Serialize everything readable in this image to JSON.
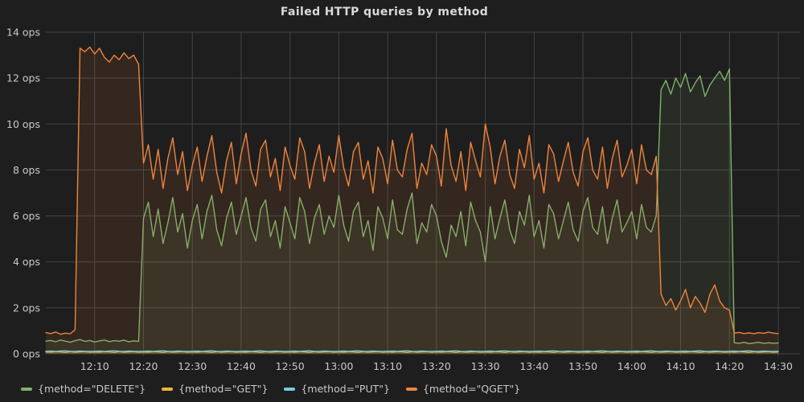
{
  "panel": {
    "title": "Failed HTTP queries by method",
    "bg_color": "#1f1e1e",
    "title_color": "#d8d9da",
    "tick_text_color": "#c7c8c9"
  },
  "chart_data": {
    "type": "line",
    "title": "Failed HTTP queries by method",
    "grid": true,
    "grid_color": "#444444",
    "legend_position": "bottom",
    "fill_opacity": 0.1,
    "x_unit": "time",
    "x_start_label": "12:00",
    "x_min": 0,
    "x_max": 150,
    "x_step_min": 1,
    "x_axis": {
      "ticks": [
        {
          "label": "12:10",
          "minute": 10
        },
        {
          "label": "12:20",
          "minute": 20
        },
        {
          "label": "12:30",
          "minute": 30
        },
        {
          "label": "12:40",
          "minute": 40
        },
        {
          "label": "12:50",
          "minute": 50
        },
        {
          "label": "13:00",
          "minute": 60
        },
        {
          "label": "13:10",
          "minute": 70
        },
        {
          "label": "13:20",
          "minute": 80
        },
        {
          "label": "13:30",
          "minute": 90
        },
        {
          "label": "13:40",
          "minute": 100
        },
        {
          "label": "13:50",
          "minute": 110
        },
        {
          "label": "14:00",
          "minute": 120
        },
        {
          "label": "14:10",
          "minute": 130
        },
        {
          "label": "14:20",
          "minute": 140
        },
        {
          "label": "14:30",
          "minute": 150
        }
      ]
    },
    "y_axis": {
      "min": 0,
      "max": 14,
      "ticks": [
        {
          "label": "0 ops",
          "value": 0
        },
        {
          "label": "2 ops",
          "value": 2
        },
        {
          "label": "4 ops",
          "value": 4
        },
        {
          "label": "6 ops",
          "value": 6
        },
        {
          "label": "8 ops",
          "value": 8
        },
        {
          "label": "10 ops",
          "value": 10
        },
        {
          "label": "12 ops",
          "value": 12
        },
        {
          "label": "14 ops",
          "value": 14
        }
      ]
    },
    "series": [
      {
        "id": "delete",
        "name": "{method=\"DELETE\"}",
        "color": "#7EB26D",
        "values": [
          0.55,
          0.58,
          0.52,
          0.6,
          0.55,
          0.5,
          0.57,
          0.62,
          0.54,
          0.58,
          0.51,
          0.56,
          0.6,
          0.53,
          0.57,
          0.55,
          0.59,
          0.52,
          0.56,
          0.54,
          5.9,
          6.6,
          5.1,
          6.3,
          4.8,
          5.7,
          6.8,
          5.3,
          6.1,
          4.6,
          5.8,
          6.5,
          5.0,
          6.2,
          6.9,
          5.4,
          4.7,
          5.9,
          6.6,
          5.2,
          6.0,
          6.8,
          5.5,
          4.9,
          6.3,
          6.7,
          5.1,
          5.8,
          4.6,
          6.4,
          5.7,
          5.0,
          6.8,
          6.2,
          4.8,
          5.9,
          6.5,
          5.2,
          6.0,
          5.5,
          6.9,
          5.6,
          4.9,
          6.2,
          6.6,
          5.1,
          5.8,
          4.5,
          6.4,
          5.9,
          5.0,
          6.7,
          5.4,
          5.2,
          6.3,
          7.0,
          4.8,
          5.7,
          5.3,
          6.5,
          6.0,
          4.9,
          4.2,
          5.6,
          5.1,
          6.2,
          4.7,
          6.6,
          5.8,
          5.3,
          4.0,
          6.4,
          5.0,
          5.9,
          6.7,
          5.4,
          4.8,
          6.2,
          5.6,
          6.9,
          5.1,
          5.8,
          4.6,
          6.5,
          6.1,
          5.0,
          5.8,
          6.6,
          5.4,
          4.9,
          6.2,
          6.8,
          5.5,
          5.2,
          6.4,
          4.8,
          5.9,
          6.7,
          5.3,
          5.7,
          6.2,
          5.0,
          6.5,
          5.5,
          5.3,
          6.0,
          11.5,
          11.9,
          11.3,
          12.0,
          11.6,
          12.2,
          11.4,
          11.8,
          12.1,
          11.2,
          11.7,
          12.0,
          12.3,
          11.9,
          12.4,
          0.48,
          0.45,
          0.5,
          0.44,
          0.47,
          0.5,
          0.45,
          0.48,
          0.46,
          0.47
        ]
      },
      {
        "id": "get",
        "name": "{method=\"GET\"}",
        "color": "#EAB839",
        "values": [
          0.08,
          0.07,
          0.09,
          0.08,
          0.06,
          0.09,
          0.07,
          0.08,
          0.09,
          0.07,
          0.08,
          0.07,
          0.09,
          0.08,
          0.06,
          0.09,
          0.07,
          0.08,
          0.09,
          0.07,
          0.08,
          0.07,
          0.09,
          0.08,
          0.06,
          0.09,
          0.07,
          0.08,
          0.09,
          0.07,
          0.08,
          0.07,
          0.09,
          0.08,
          0.06,
          0.09,
          0.07,
          0.08,
          0.09,
          0.07,
          0.08,
          0.07,
          0.09,
          0.08,
          0.06,
          0.09,
          0.07,
          0.08,
          0.09,
          0.07,
          0.08,
          0.07,
          0.09,
          0.08,
          0.06,
          0.09,
          0.07,
          0.08,
          0.09,
          0.07,
          0.08,
          0.07,
          0.09,
          0.08,
          0.06,
          0.09,
          0.07,
          0.08,
          0.09,
          0.07,
          0.08,
          0.07,
          0.09,
          0.08,
          0.06,
          0.09,
          0.07,
          0.08,
          0.09,
          0.07,
          0.08,
          0.07,
          0.09,
          0.08,
          0.06,
          0.09,
          0.07,
          0.08,
          0.09,
          0.07,
          0.08,
          0.07,
          0.09,
          0.08,
          0.06,
          0.09,
          0.07,
          0.08,
          0.09,
          0.07,
          0.08,
          0.07,
          0.09,
          0.08,
          0.06,
          0.09,
          0.07,
          0.08,
          0.09,
          0.07,
          0.08,
          0.07,
          0.09,
          0.08,
          0.06,
          0.09,
          0.07,
          0.08,
          0.09,
          0.07,
          0.08,
          0.07,
          0.09,
          0.08,
          0.06,
          0.09,
          0.07,
          0.08,
          0.09,
          0.07,
          0.08,
          0.07,
          0.09,
          0.08,
          0.06,
          0.09,
          0.07,
          0.08,
          0.09,
          0.07,
          0.08,
          0.07,
          0.09,
          0.08,
          0.06,
          0.09,
          0.07,
          0.08,
          0.09,
          0.07,
          0.08
        ]
      },
      {
        "id": "put",
        "name": "{method=\"PUT\"}",
        "color": "#6ED0E0",
        "values": [
          0.11,
          0.12,
          0.1,
          0.12,
          0.13,
          0.11,
          0.1,
          0.12,
          0.11,
          0.1,
          0.11,
          0.12,
          0.1,
          0.12,
          0.13,
          0.11,
          0.1,
          0.12,
          0.11,
          0.1,
          0.11,
          0.12,
          0.1,
          0.12,
          0.13,
          0.11,
          0.1,
          0.12,
          0.11,
          0.1,
          0.11,
          0.12,
          0.1,
          0.12,
          0.13,
          0.11,
          0.1,
          0.12,
          0.11,
          0.1,
          0.11,
          0.12,
          0.1,
          0.12,
          0.13,
          0.11,
          0.1,
          0.12,
          0.11,
          0.1,
          0.11,
          0.12,
          0.1,
          0.12,
          0.13,
          0.11,
          0.1,
          0.12,
          0.11,
          0.1,
          0.11,
          0.12,
          0.1,
          0.12,
          0.13,
          0.11,
          0.1,
          0.12,
          0.11,
          0.1,
          0.11,
          0.12,
          0.1,
          0.12,
          0.13,
          0.11,
          0.1,
          0.12,
          0.11,
          0.1,
          0.11,
          0.12,
          0.1,
          0.12,
          0.13,
          0.11,
          0.1,
          0.12,
          0.11,
          0.1,
          0.11,
          0.12,
          0.1,
          0.12,
          0.13,
          0.11,
          0.1,
          0.12,
          0.11,
          0.1,
          0.11,
          0.12,
          0.1,
          0.12,
          0.13,
          0.11,
          0.1,
          0.12,
          0.11,
          0.1,
          0.11,
          0.12,
          0.1,
          0.12,
          0.13,
          0.11,
          0.1,
          0.12,
          0.11,
          0.1,
          0.11,
          0.12,
          0.1,
          0.12,
          0.13,
          0.11,
          0.1,
          0.12,
          0.11,
          0.1,
          0.11,
          0.12,
          0.1,
          0.12,
          0.13,
          0.11,
          0.1,
          0.12,
          0.11,
          0.1,
          0.11,
          0.12,
          0.1,
          0.12,
          0.13,
          0.11,
          0.1,
          0.12,
          0.11,
          0.1,
          0.11
        ]
      },
      {
        "id": "qget",
        "name": "{method=\"QGET\"}",
        "color": "#EF843C",
        "values": [
          0.92,
          0.88,
          0.95,
          0.85,
          0.9,
          0.87,
          1.05,
          13.3,
          13.15,
          13.35,
          13.05,
          13.3,
          12.9,
          12.7,
          13.0,
          12.8,
          13.1,
          12.85,
          13.0,
          12.6,
          8.3,
          9.1,
          7.6,
          8.9,
          7.2,
          8.5,
          9.4,
          7.8,
          8.8,
          7.1,
          8.2,
          9.0,
          7.5,
          8.6,
          9.5,
          7.9,
          7.0,
          8.4,
          9.2,
          7.4,
          8.7,
          9.6,
          8.0,
          7.3,
          8.9,
          9.3,
          7.7,
          8.5,
          7.1,
          9.0,
          8.2,
          7.6,
          9.4,
          8.8,
          7.2,
          8.3,
          9.1,
          7.5,
          8.6,
          7.9,
          9.5,
          8.1,
          7.3,
          8.8,
          9.2,
          7.6,
          8.4,
          7.0,
          9.0,
          8.5,
          7.4,
          9.3,
          8.0,
          7.7,
          8.9,
          9.6,
          7.2,
          8.3,
          7.8,
          9.1,
          8.6,
          7.3,
          9.8,
          8.2,
          7.5,
          8.8,
          7.1,
          9.2,
          8.4,
          7.7,
          10.0,
          9.0,
          7.4,
          8.6,
          9.3,
          7.8,
          7.2,
          8.9,
          8.1,
          9.5,
          7.6,
          8.3,
          7.0,
          9.1,
          8.7,
          7.5,
          8.4,
          9.2,
          7.9,
          7.3,
          8.8,
          9.4,
          8.0,
          7.6,
          9.0,
          7.2,
          8.5,
          9.3,
          7.7,
          8.2,
          8.9,
          7.4,
          9.1,
          8.0,
          7.8,
          8.6,
          2.6,
          2.1,
          2.4,
          1.9,
          2.3,
          2.8,
          2.0,
          2.5,
          2.2,
          1.8,
          2.6,
          3.0,
          2.3,
          2.0,
          1.9,
          0.9,
          0.93,
          0.88,
          0.91,
          0.87,
          0.92,
          0.89,
          0.94,
          0.9,
          0.88
        ]
      }
    ]
  }
}
